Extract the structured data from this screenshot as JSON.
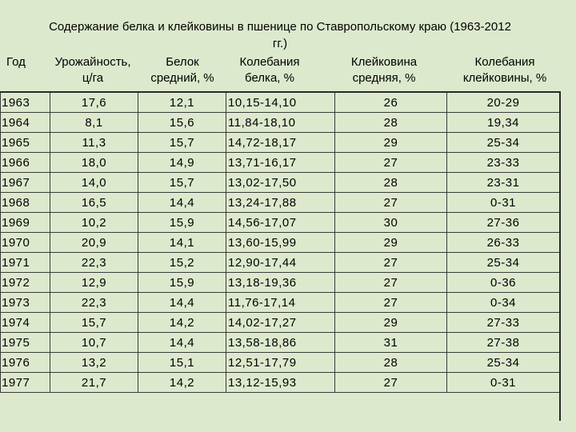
{
  "title": "Содержание белка и клейковины в пшенице по Ставропольскому краю (1963-2012 гг.)",
  "headers": {
    "year": [
      "Год"
    ],
    "yield": [
      "Урожайность,",
      "ц/га"
    ],
    "protein": [
      "Белок",
      "средний, %"
    ],
    "protein_fluct": [
      "Колебания",
      "белка, %"
    ],
    "gluten": [
      "Клейковина",
      "средняя, %"
    ],
    "gluten_fluct": [
      "Колебания",
      "клейковины, %"
    ]
  },
  "rows": [
    [
      "1963",
      "17,6",
      "12,1",
      "10,15-14,10",
      "26",
      "20-29"
    ],
    [
      "1964",
      "8,1",
      "15,6",
      "11,84-18,10",
      "28",
      "19,34"
    ],
    [
      "1965",
      "11,3",
      "15,7",
      "14,72-18,17",
      "29",
      "25-34"
    ],
    [
      "1966",
      "18,0",
      "14,9",
      "13,71-16,17",
      "27",
      "23-33"
    ],
    [
      "1967",
      "14,0",
      "15,7",
      "13,02-17,50",
      "28",
      "23-31"
    ],
    [
      "1968",
      "16,5",
      "14,4",
      "13,24-17,88",
      "27",
      "0-31"
    ],
    [
      "1969",
      "10,2",
      "15,9",
      "14,56-17,07",
      "30",
      "27-36"
    ],
    [
      "1970",
      "20,9",
      "14,1",
      "13,60-15,99",
      "29",
      "26-33"
    ],
    [
      "1971",
      "22,3",
      "15,2",
      "12,90-17,44",
      "27",
      "25-34"
    ],
    [
      "1972",
      "12,9",
      "15,9",
      "13,18-19,36",
      "27",
      "0-36"
    ],
    [
      "1973",
      "22,3",
      "14,4",
      "11,76-17,14",
      "27",
      "0-34"
    ],
    [
      "1974",
      "15,7",
      "14,2",
      "14,02-17,27",
      "29",
      "27-33"
    ],
    [
      "1975",
      "10,7",
      "14,4",
      "13,58-18,86",
      "31",
      "27-38"
    ],
    [
      "1976",
      "13,2",
      "15,1",
      "12,51-17,79",
      "28",
      "25-34"
    ],
    [
      "1977",
      "21,7",
      "14,2",
      "13,12-15,93",
      "27",
      "0-31"
    ]
  ]
}
